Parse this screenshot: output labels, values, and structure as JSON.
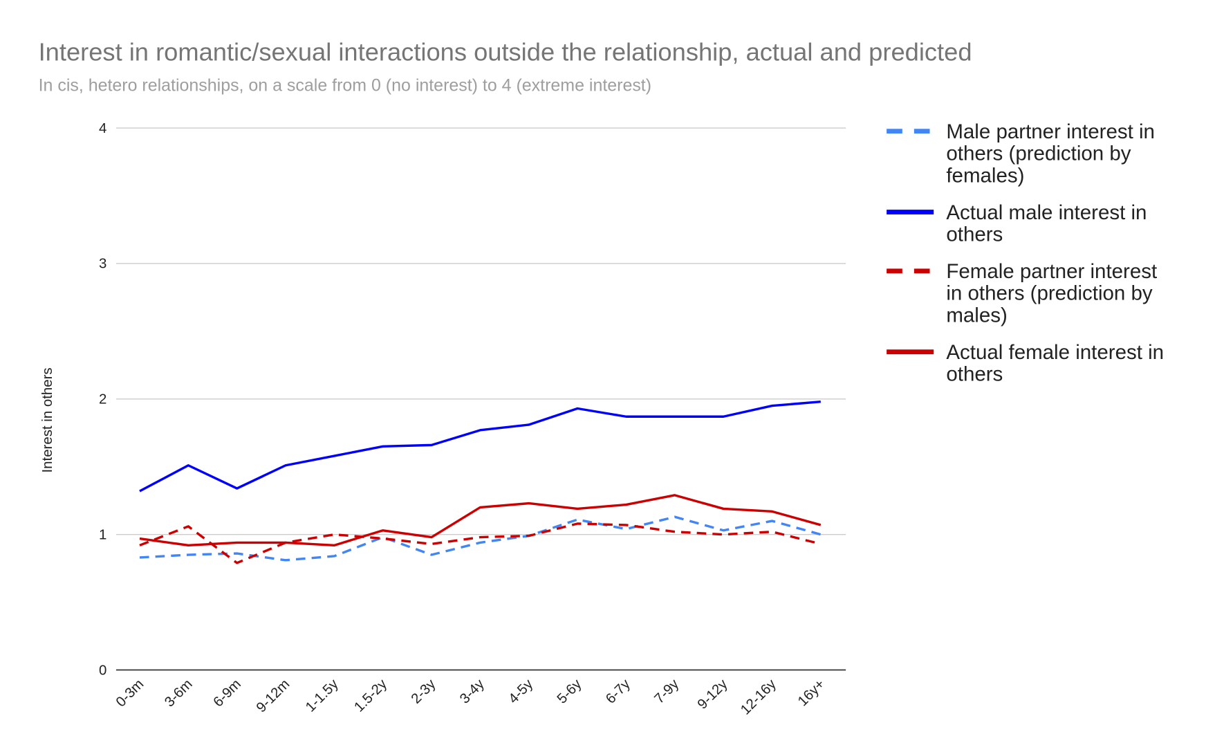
{
  "chart_data": {
    "type": "line",
    "title": "Interest in romantic/sexual interactions outside the relationship, actual and predicted",
    "subtitle": "In cis, hetero relationships, on a scale from 0 (no interest) to 4 (extreme interest)",
    "xlabel": "",
    "ylabel": "Interest in others",
    "ylim": [
      0,
      4
    ],
    "yticks": [
      "0",
      "1",
      "2",
      "3",
      "4"
    ],
    "grid": true,
    "legend_position": "right",
    "categories": [
      "0-3m",
      "3-6m",
      "6-9m",
      "9-12m",
      "1-1.5y",
      "1.5-2y",
      "2-3y",
      "3-4y",
      "4-5y",
      "5-6y",
      "6-7y",
      "7-9y",
      "9-12y",
      "12-16y",
      "16y+"
    ],
    "series": [
      {
        "name": "Male partner interest in others (prediction by females)",
        "legend_lines": [
          "Male partner interest in",
          "others (prediction by",
          "females)"
        ],
        "color": "#4285f4",
        "dashed": true,
        "values": [
          0.83,
          0.85,
          0.86,
          0.81,
          0.84,
          0.98,
          0.85,
          0.94,
          0.99,
          1.11,
          1.04,
          1.13,
          1.03,
          1.1,
          1.0
        ]
      },
      {
        "name": "Actual male interest in others",
        "legend_lines": [
          "Actual male interest in",
          "others"
        ],
        "color": "#0000ff",
        "dashed": false,
        "values": [
          1.32,
          1.51,
          1.34,
          1.51,
          1.58,
          1.65,
          1.66,
          1.77,
          1.81,
          1.93,
          1.87,
          1.87,
          1.87,
          1.95,
          1.98
        ]
      },
      {
        "name": "Female partner interest in others (prediction by males)",
        "legend_lines": [
          "Female partner interest",
          "in others (prediction by",
          "males)"
        ],
        "color": "#cc0000",
        "dashed": true,
        "values": [
          0.92,
          1.06,
          0.79,
          0.94,
          1.0,
          0.97,
          0.93,
          0.98,
          0.99,
          1.08,
          1.07,
          1.02,
          1.0,
          1.02,
          0.93
        ]
      },
      {
        "name": "Actual female interest in others",
        "legend_lines": [
          "Actual female interest in",
          "others"
        ],
        "color": "#cc0000",
        "dashed": false,
        "values": [
          0.97,
          0.92,
          0.94,
          0.94,
          0.92,
          1.03,
          0.98,
          1.2,
          1.23,
          1.19,
          1.22,
          1.29,
          1.19,
          1.17,
          1.07
        ]
      }
    ]
  }
}
